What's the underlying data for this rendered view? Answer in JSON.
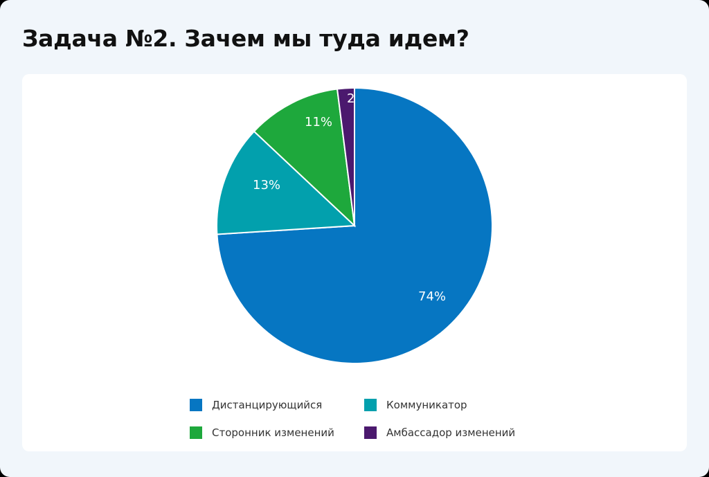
{
  "title": "Задача №2. Зачем мы туда идем?",
  "chart_data": {
    "type": "pie",
    "title": "Задача №2. Зачем мы туда идем?",
    "categories": [
      "Дистанцирующийся",
      "Коммуникатор",
      "Сторонник изменений",
      "Амбассадор изменений"
    ],
    "values": [
      74,
      13,
      11,
      2
    ],
    "unit": "%",
    "data_labels": [
      "74%",
      "13%",
      "11%",
      "2"
    ],
    "colors": [
      "#0676c2",
      "#02a0ad",
      "#1ea83c",
      "#4b196e"
    ],
    "start_angle": "12 o'clock",
    "direction": "clockwise",
    "legend_position": "bottom"
  },
  "legend": [
    {
      "label": "Дистанцирующийся",
      "color": "#0676c2"
    },
    {
      "label": "Коммуникатор",
      "color": "#02a0ad"
    },
    {
      "label": "Сторонник изменений",
      "color": "#1ea83c"
    },
    {
      "label": "Амбассадор изменений",
      "color": "#4b196e"
    }
  ]
}
